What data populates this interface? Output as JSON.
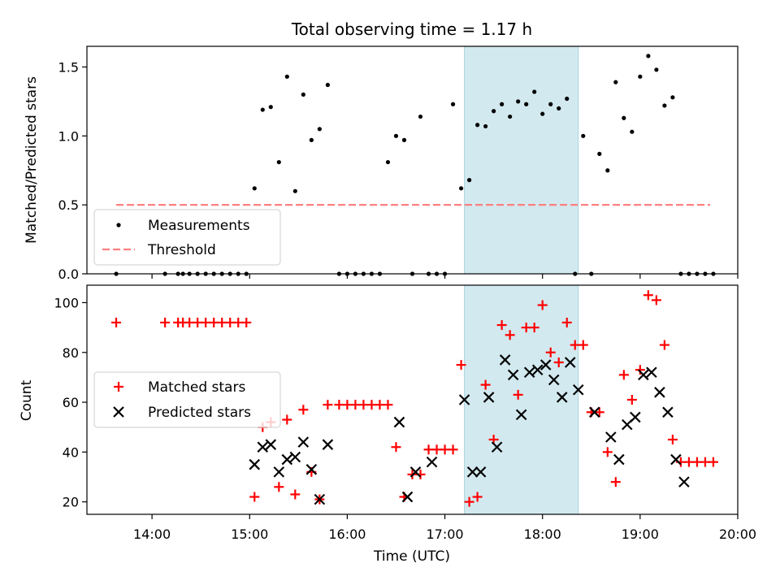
{
  "chart_data": [
    {
      "type": "scatter",
      "title": "Total observing time = 1.17 h",
      "ylabel": "Matched/Predicted stars",
      "xlabel": "",
      "xlim": [
        "13:20",
        "20:00"
      ],
      "ylim": [
        0,
        1.65
      ],
      "yticks": [
        0.0,
        0.5,
        1.0,
        1.5
      ],
      "ytick_labels": [
        "0.0",
        "0.5",
        "1.0",
        "1.5"
      ],
      "legend_position": "lower-left",
      "highlight_span": {
        "start": "17:12",
        "end": "18:22",
        "color": "#d2e9ef"
      },
      "threshold": {
        "name": "Threshold",
        "value": 0.5,
        "x_start": "13:38",
        "x_end": "19:43",
        "color": "#ff7f7f",
        "style": "dashed"
      },
      "series": [
        {
          "name": "Measurements",
          "marker": "dot",
          "color": "#000000",
          "x": [
            "13:38",
            "14:08",
            "14:16",
            "14:19",
            "14:23",
            "14:28",
            "14:33",
            "14:38",
            "14:43",
            "14:48",
            "14:53",
            "14:58",
            "15:03",
            "15:08",
            "15:13",
            "15:18",
            "15:23",
            "15:28",
            "15:33",
            "15:38",
            "15:43",
            "15:48",
            "15:55",
            "16:00",
            "16:05",
            "16:10",
            "16:15",
            "16:20",
            "16:25",
            "16:30",
            "16:35",
            "16:40",
            "16:45",
            "16:50",
            "16:55",
            "17:00",
            "17:05",
            "17:10",
            "17:15",
            "17:20",
            "17:25",
            "17:30",
            "17:35",
            "17:40",
            "17:45",
            "17:50",
            "17:55",
            "18:00",
            "18:05",
            "18:10",
            "18:15",
            "18:20",
            "18:25",
            "18:30",
            "18:35",
            "18:40",
            "18:45",
            "18:50",
            "18:55",
            "19:00",
            "19:05",
            "19:10",
            "19:15",
            "19:20",
            "19:25",
            "19:30",
            "19:35",
            "19:40",
            "19:45"
          ],
          "y": [
            0,
            0,
            0,
            0,
            0,
            0,
            0,
            0,
            0,
            0,
            0,
            0,
            0.62,
            1.19,
            1.21,
            0.81,
            1.43,
            0.6,
            1.3,
            0.97,
            1.05,
            1.37,
            0,
            0,
            0,
            0,
            0,
            0,
            0.81,
            1.0,
            0.97,
            0,
            1.14,
            0,
            0,
            0,
            1.23,
            0.62,
            0.68,
            1.08,
            1.07,
            1.18,
            1.23,
            1.14,
            1.25,
            1.23,
            1.32,
            1.16,
            1.23,
            1.2,
            1.27,
            0,
            1.0,
            0,
            0.87,
            0.75,
            1.39,
            1.13,
            1.03,
            1.43,
            1.58,
            1.48,
            1.22,
            1.28,
            0,
            0,
            0,
            0,
            0
          ]
        },
        {
          "name": "Threshold",
          "marker": "dashed-line",
          "color": "#ff7f7f"
        }
      ]
    },
    {
      "type": "scatter",
      "title": "",
      "ylabel": "Count",
      "xlabel": "Time (UTC)",
      "xlim": [
        "13:20",
        "20:00"
      ],
      "xticks": [
        "14:00",
        "15:00",
        "16:00",
        "17:00",
        "18:00",
        "19:00",
        "20:00"
      ],
      "ylim": [
        15,
        107
      ],
      "yticks": [
        20,
        40,
        60,
        80,
        100
      ],
      "legend_position": "center-left",
      "highlight_span": {
        "start": "17:12",
        "end": "18:22",
        "color": "#d2e9ef"
      },
      "series": [
        {
          "name": "Matched stars",
          "marker": "plus",
          "color": "#ff0000",
          "x": [
            "13:38",
            "14:08",
            "14:16",
            "14:19",
            "14:23",
            "14:28",
            "14:33",
            "14:38",
            "14:43",
            "14:48",
            "14:53",
            "14:58",
            "15:03",
            "15:08",
            "15:13",
            "15:18",
            "15:23",
            "15:28",
            "15:33",
            "15:38",
            "15:43",
            "15:48",
            "15:55",
            "16:00",
            "16:05",
            "16:10",
            "16:15",
            "16:20",
            "16:25",
            "16:30",
            "16:35",
            "16:40",
            "16:45",
            "16:50",
            "16:55",
            "17:00",
            "17:05",
            "17:10",
            "17:15",
            "17:20",
            "17:25",
            "17:30",
            "17:35",
            "17:40",
            "17:45",
            "17:50",
            "17:55",
            "18:00",
            "18:05",
            "18:10",
            "18:15",
            "18:20",
            "18:25",
            "18:30",
            "18:35",
            "18:40",
            "18:45",
            "18:50",
            "18:55",
            "19:00",
            "19:05",
            "19:10",
            "19:15",
            "19:20",
            "19:25",
            "19:30",
            "19:35",
            "19:40",
            "19:45"
          ],
          "y": [
            92,
            92,
            92,
            92,
            92,
            92,
            92,
            92,
            92,
            92,
            92,
            92,
            22,
            50,
            52,
            26,
            53,
            23,
            57,
            32,
            21,
            59,
            59,
            59,
            59,
            59,
            59,
            59,
            59,
            42,
            22,
            31,
            31,
            41,
            41,
            41,
            41,
            75,
            20,
            22,
            67,
            45,
            91,
            87,
            63,
            90,
            90,
            99,
            80,
            76,
            92,
            83,
            83,
            56,
            56,
            40,
            28,
            71,
            61,
            73,
            103,
            101,
            83,
            45,
            36,
            36,
            36,
            36,
            36
          ]
        },
        {
          "name": "Predicted stars",
          "marker": "x",
          "color": "#000000",
          "x": [
            "15:03",
            "15:08",
            "15:13",
            "15:18",
            "15:23",
            "15:28",
            "15:33",
            "15:38",
            "15:43",
            "15:48",
            "16:32",
            "16:37",
            "16:42",
            "16:52",
            "17:12",
            "17:17",
            "17:22",
            "17:27",
            "17:32",
            "17:37",
            "17:42",
            "17:47",
            "17:52",
            "17:57",
            "18:02",
            "18:07",
            "18:12",
            "18:17",
            "18:22",
            "18:32",
            "18:42",
            "18:47",
            "18:52",
            "18:57",
            "19:02",
            "19:07",
            "19:12",
            "19:17",
            "19:22",
            "19:27"
          ],
          "y": [
            35,
            42,
            43,
            32,
            37,
            38,
            44,
            33,
            21,
            43,
            52,
            22,
            32,
            36,
            61,
            32,
            32,
            62,
            42,
            77,
            71,
            55,
            72,
            73,
            75,
            69,
            62,
            76,
            65,
            56,
            46,
            37,
            51,
            54,
            71,
            72,
            64,
            56,
            37,
            28
          ]
        }
      ]
    }
  ]
}
